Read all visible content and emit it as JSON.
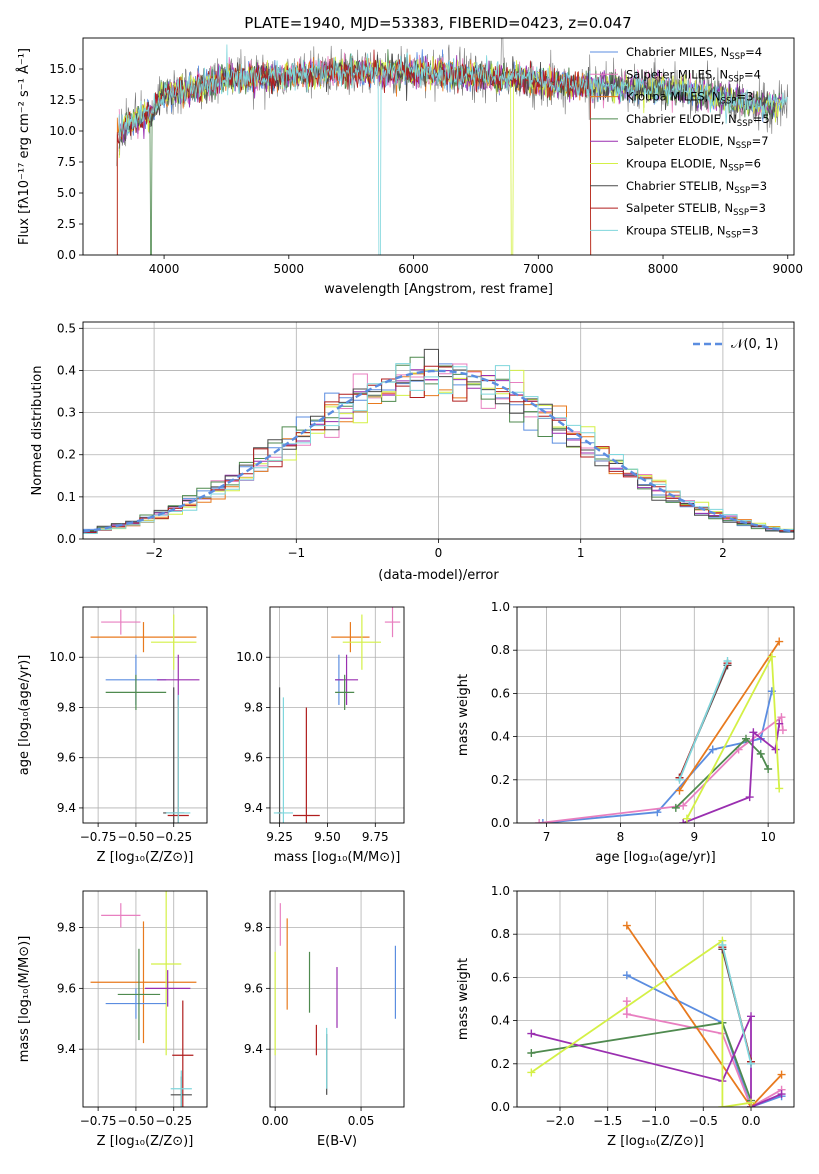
{
  "colors": {
    "chabrier_miles": "#5b8de0",
    "salpeter_miles": "#e87fc0",
    "kroupa_miles": "#e87a1e",
    "chabrier_elodie": "#4f8a4f",
    "salpeter_elodie": "#9a2fb0",
    "kroupa_elodie": "#d4f046",
    "chabrier_stelib": "#4a4a4a",
    "salpeter_stelib": "#b01e1e",
    "kroupa_stelib": "#7fd6dc",
    "normal": "#5b8de0"
  },
  "chart_data": [
    {
      "id": "spectrum",
      "type": "line",
      "title": "PLATE=1940, MJD=53383, FIBERID=0423, z=0.047",
      "xlabel": "wavelength [Angstrom, rest frame]",
      "ylabel": "Flux [fλ10⁻¹⁷ erg cm⁻² s⁻¹ Å⁻¹]",
      "xlim": [
        3350,
        9050
      ],
      "ylim": [
        0,
        17.5
      ],
      "xticks": [
        4000,
        5000,
        6000,
        7000,
        8000,
        9000
      ],
      "yticks": [
        0.0,
        2.5,
        5.0,
        7.5,
        10.0,
        12.5,
        15.0
      ],
      "legend_position": "right",
      "legend": [
        {
          "key": "chabrier_miles",
          "text": "Chabrier MILES, N",
          "sub": "SSP",
          "post": "=4"
        },
        {
          "key": "salpeter_miles",
          "text": "Salpeter MILES, N",
          "sub": "SSP",
          "post": "=4"
        },
        {
          "key": "kroupa_miles",
          "text": "Kroupa MILES, N",
          "sub": "SSP",
          "post": "=3"
        },
        {
          "key": "chabrier_elodie",
          "text": "Chabrier ELODIE, N",
          "sub": "SSP",
          "post": "=5"
        },
        {
          "key": "salpeter_elodie",
          "text": "Salpeter ELODIE, N",
          "sub": "SSP",
          "post": "=7"
        },
        {
          "key": "kroupa_elodie",
          "text": "Kroupa ELODIE, N",
          "sub": "SSP",
          "post": "=6"
        },
        {
          "key": "chabrier_stelib",
          "text": "Chabrier STELIB, N",
          "sub": "SSP",
          "post": "=3"
        },
        {
          "key": "salpeter_stelib",
          "text": "Salpeter STELIB, N",
          "sub": "SSP",
          "post": "=3"
        },
        {
          "key": "kroupa_stelib",
          "text": "Kroupa STELIB, N",
          "sub": "SSP",
          "post": "=3"
        }
      ],
      "continuum": [
        [
          3620,
          9.5
        ],
        [
          3700,
          10.5
        ],
        [
          3800,
          11.0
        ],
        [
          3900,
          11.5
        ],
        [
          4000,
          13.0
        ],
        [
          4300,
          13.5
        ],
        [
          4500,
          14.3
        ],
        [
          5000,
          14.5
        ],
        [
          5500,
          14.8
        ],
        [
          6000,
          14.8
        ],
        [
          6500,
          14.5
        ],
        [
          7000,
          14.0
        ],
        [
          7500,
          13.5
        ],
        [
          8000,
          13.5
        ],
        [
          8500,
          12.6
        ],
        [
          8800,
          12.0
        ],
        [
          9000,
          12.4
        ]
      ]
    },
    {
      "id": "residuals",
      "type": "line",
      "xlabel": "(data-model)/error",
      "ylabel": "Normed distribution",
      "xlim": [
        -2.5,
        2.5
      ],
      "ylim": [
        0,
        0.515
      ],
      "xticks": [
        -2,
        -1,
        0,
        1,
        2
      ],
      "xtick_labels": [
        "−2",
        "−1",
        "0",
        "1",
        "2"
      ],
      "yticks": [
        0.0,
        0.1,
        0.2,
        0.3,
        0.4,
        0.5
      ],
      "legend": [
        {
          "key": "normal",
          "text": "𝒩(0, 1)"
        }
      ],
      "bin_width": 0.1
    },
    {
      "id": "age_vs_Z",
      "type": "scatter",
      "xlabel": "Z [log₁₀(Z/Z⊙)]",
      "ylabel": "age  [log₁₀(age/yr)]",
      "xlim": [
        -0.85,
        -0.03
      ],
      "ylim": [
        9.34,
        10.2
      ],
      "xticks": [
        -0.75,
        -0.5,
        -0.25
      ],
      "xtick_labels": [
        "−0.75",
        "−0.50",
        "−0.25"
      ],
      "yticks": [
        9.4,
        9.6,
        9.8,
        10.0
      ],
      "points": [
        {
          "key": "salpeter_miles",
          "x": -0.6,
          "xerr": 0.13,
          "y": 10.14,
          "yerr": 0.05
        },
        {
          "key": "kroupa_miles",
          "x": -0.45,
          "xerr": 0.35,
          "y": 10.08,
          "yerr": 0.06
        },
        {
          "key": "kroupa_elodie",
          "x": -0.25,
          "xerr": 0.15,
          "y": 10.06,
          "yerr": 0.11
        },
        {
          "key": "chabrier_miles",
          "x": -0.5,
          "xerr": 0.2,
          "y": 9.91,
          "yerr": 0.1
        },
        {
          "key": "salpeter_elodie",
          "x": -0.22,
          "xerr": 0.14,
          "y": 9.91,
          "yerr": 0.1
        },
        {
          "key": "chabrier_elodie",
          "x": -0.5,
          "xerr": 0.2,
          "y": 9.86,
          "yerr": 0.07
        },
        {
          "key": "chabrier_stelib",
          "x": -0.25,
          "xerr": 0.07,
          "y": 9.38,
          "yerr": 0.5
        },
        {
          "key": "salpeter_stelib",
          "x": -0.22,
          "xerr": 0.07,
          "y": 9.37,
          "yerr": 0.46
        },
        {
          "key": "kroupa_stelib",
          "x": -0.22,
          "xerr": 0.08,
          "y": 9.38,
          "yerr": 0.47
        }
      ]
    },
    {
      "id": "age_vs_mass",
      "type": "scatter",
      "xlabel": "mass [log₁₀(M/M⊙)]",
      "ylabel": "",
      "xlim": [
        9.2,
        9.9
      ],
      "ylim": [
        9.34,
        10.2
      ],
      "xticks": [
        9.25,
        9.5,
        9.75
      ],
      "xtick_labels": [
        "9.25",
        "9.50",
        "9.75"
      ],
      "yticks": [
        9.4,
        9.6,
        9.8,
        10.0
      ],
      "points": [
        {
          "key": "salpeter_miles",
          "x": 9.84,
          "xerr": 0.04,
          "y": 10.14,
          "yerr": 0.06
        },
        {
          "key": "kroupa_miles",
          "x": 9.62,
          "xerr": 0.1,
          "y": 10.08,
          "yerr": 0.06
        },
        {
          "key": "kroupa_elodie",
          "x": 9.68,
          "xerr": 0.1,
          "y": 10.06,
          "yerr": 0.11
        },
        {
          "key": "chabrier_miles",
          "x": 9.56,
          "xerr": 0.02,
          "y": 9.91,
          "yerr": 0.1
        },
        {
          "key": "salpeter_elodie",
          "x": 9.6,
          "xerr": 0.06,
          "y": 9.91,
          "yerr": 0.1
        },
        {
          "key": "chabrier_elodie",
          "x": 9.59,
          "xerr": 0.05,
          "y": 9.86,
          "yerr": 0.07
        },
        {
          "key": "chabrier_stelib",
          "x": 9.25,
          "xerr": 0.01,
          "y": 9.38,
          "yerr": 0.5
        },
        {
          "key": "salpeter_stelib",
          "x": 9.39,
          "xerr": 0.07,
          "y": 9.37,
          "yerr": 0.43
        },
        {
          "key": "kroupa_stelib",
          "x": 9.27,
          "xerr": 0.05,
          "y": 9.38,
          "yerr": 0.46
        }
      ]
    },
    {
      "id": "massweight_vs_age",
      "type": "line",
      "xlabel": "age  [log₁₀(age/yr)]",
      "ylabel": "mass weight",
      "xlim": [
        6.6,
        10.35
      ],
      "ylim": [
        0,
        1.0
      ],
      "xticks": [
        7,
        8,
        9,
        10
      ],
      "yticks": [
        0.0,
        0.2,
        0.4,
        0.6,
        0.8,
        1.0
      ],
      "series": [
        {
          "key": "chabrier_miles",
          "x": [
            6.95,
            8.5,
            9.25,
            9.9,
            10.05
          ],
          "y": [
            0.0,
            0.05,
            0.34,
            0.39,
            0.61
          ]
        },
        {
          "key": "salpeter_miles",
          "x": [
            6.9,
            8.85,
            9.6,
            10.18,
            10.2
          ],
          "y": [
            0.0,
            0.08,
            0.34,
            0.49,
            0.43
          ]
        },
        {
          "key": "kroupa_miles",
          "x": [
            8.8,
            10.15
          ],
          "y": [
            0.15,
            0.84
          ]
        },
        {
          "key": "chabrier_elodie",
          "x": [
            8.75,
            9.7,
            9.9,
            10.0
          ],
          "y": [
            0.07,
            0.39,
            0.32,
            0.25
          ]
        },
        {
          "key": "salpeter_elodie",
          "x": [
            8.85,
            9.75,
            9.8,
            10.1,
            10.15
          ],
          "y": [
            0.0,
            0.12,
            0.42,
            0.34,
            0.46
          ]
        },
        {
          "key": "kroupa_elodie",
          "x": [
            8.9,
            10.05,
            10.15
          ],
          "y": [
            0.02,
            0.77,
            0.16
          ]
        },
        {
          "key": "chabrier_stelib",
          "x": [
            8.8,
            9.45
          ],
          "y": [
            0.21,
            0.73
          ]
        },
        {
          "key": "salpeter_stelib",
          "x": [
            8.8,
            9.45
          ],
          "y": [
            0.21,
            0.74
          ]
        },
        {
          "key": "kroupa_stelib",
          "x": [
            8.8,
            9.45
          ],
          "y": [
            0.2,
            0.75
          ]
        }
      ]
    },
    {
      "id": "mass_vs_Z",
      "type": "scatter",
      "xlabel": "Z [log₁₀(Z/Z⊙)]",
      "ylabel": "mass [log₁₀(M/M⊙)]",
      "xlim": [
        -0.85,
        -0.03
      ],
      "ylim": [
        9.21,
        9.92
      ],
      "xticks": [
        -0.75,
        -0.5,
        -0.25
      ],
      "xtick_labels": [
        "−0.75",
        "−0.50",
        "−0.25"
      ],
      "yticks": [
        9.4,
        9.6,
        9.8
      ],
      "points": [
        {
          "key": "salpeter_miles",
          "x": -0.6,
          "xerr": 0.13,
          "y": 9.84,
          "yerr": 0.04
        },
        {
          "key": "kroupa_miles",
          "x": -0.45,
          "xerr": 0.35,
          "y": 9.62,
          "yerr": 0.2
        },
        {
          "key": "kroupa_elodie",
          "x": -0.3,
          "xerr": 0.1,
          "y": 9.68,
          "yerr": 0.3
        },
        {
          "key": "chabrier_miles",
          "x": -0.5,
          "xerr": 0.2,
          "y": 9.55,
          "yerr": 0.05
        },
        {
          "key": "salpeter_elodie",
          "x": -0.29,
          "xerr": 0.15,
          "y": 9.6,
          "yerr": 0.06
        },
        {
          "key": "chabrier_elodie",
          "x": -0.48,
          "xerr": 0.14,
          "y": 9.58,
          "yerr": 0.15
        },
        {
          "key": "salpeter_stelib",
          "x": -0.19,
          "xerr": 0.07,
          "y": 9.38,
          "yerr": 0.18
        },
        {
          "key": "chabrier_stelib",
          "x": -0.2,
          "xerr": 0.07,
          "y": 9.25,
          "yerr": 0.06
        },
        {
          "key": "kroupa_stelib",
          "x": -0.2,
          "xerr": 0.07,
          "y": 9.27,
          "yerr": 0.06
        }
      ]
    },
    {
      "id": "mass_vs_ebv",
      "type": "scatter",
      "xlabel": "E(B-V)",
      "ylabel": "",
      "xlim": [
        -0.003,
        0.075
      ],
      "ylim": [
        9.21,
        9.92
      ],
      "xticks": [
        0.0,
        0.05
      ],
      "xtick_labels": [
        "0.00",
        "0.05"
      ],
      "yticks": [
        9.4,
        9.6,
        9.8
      ],
      "points": [
        {
          "key": "kroupa_elodie",
          "x": 0.0,
          "xerr": 0,
          "y": 9.55,
          "yerr": 0.17
        },
        {
          "key": "salpeter_miles",
          "x": 0.003,
          "xerr": 0,
          "y": 9.81,
          "yerr": 0.07
        },
        {
          "key": "kroupa_miles",
          "x": 0.007,
          "xerr": 0,
          "y": 9.68,
          "yerr": 0.15
        },
        {
          "key": "chabrier_elodie",
          "x": 0.02,
          "xerr": 0,
          "y": 9.62,
          "yerr": 0.1
        },
        {
          "key": "salpeter_stelib",
          "x": 0.024,
          "xerr": 0,
          "y": 9.43,
          "yerr": 0.05
        },
        {
          "key": "chabrier_stelib",
          "x": 0.03,
          "xerr": 0,
          "y": 9.35,
          "yerr": 0.1
        },
        {
          "key": "kroupa_stelib",
          "x": 0.03,
          "xerr": 0,
          "y": 9.37,
          "yerr": 0.1
        },
        {
          "key": "salpeter_elodie",
          "x": 0.036,
          "xerr": 0,
          "y": 9.57,
          "yerr": 0.1
        },
        {
          "key": "chabrier_miles",
          "x": 0.07,
          "xerr": 0,
          "y": 9.62,
          "yerr": 0.12
        }
      ]
    },
    {
      "id": "massweight_vs_Z",
      "type": "line",
      "xlabel": "Z [log₁₀(Z/Z⊙)]",
      "ylabel": "mass weight",
      "xlim": [
        -2.45,
        0.45
      ],
      "ylim": [
        0,
        1.0
      ],
      "xticks": [
        -2.0,
        -1.5,
        -1.0,
        -0.5,
        0.0
      ],
      "xtick_labels": [
        "−2.0",
        "−1.5",
        "−1.0",
        "−0.5",
        "0.0"
      ],
      "yticks": [
        0.0,
        0.2,
        0.4,
        0.6,
        0.8,
        1.0
      ],
      "series": [
        {
          "key": "chabrier_miles",
          "x": [
            -1.3,
            -0.3,
            0.0,
            0.32
          ],
          "y": [
            0.61,
            0.39,
            0.0,
            0.05
          ]
        },
        {
          "key": "salpeter_miles",
          "x": [
            -1.3,
            -1.3,
            -0.3,
            0.0,
            0.32
          ],
          "y": [
            0.49,
            0.43,
            0.34,
            0.0,
            0.08
          ]
        },
        {
          "key": "kroupa_miles",
          "x": [
            -1.3,
            0.0,
            0.32
          ],
          "y": [
            0.84,
            0.0,
            0.15
          ]
        },
        {
          "key": "chabrier_elodie",
          "x": [
            -2.3,
            -0.3,
            0.0
          ],
          "y": [
            0.25,
            0.39,
            0.03
          ]
        },
        {
          "key": "salpeter_elodie",
          "x": [
            -2.3,
            -0.3,
            0.0,
            0.0,
            0.32
          ],
          "y": [
            0.34,
            0.12,
            0.42,
            0.0,
            0.06
          ]
        },
        {
          "key": "kroupa_elodie",
          "x": [
            -2.3,
            -0.3,
            -0.3,
            0.0
          ],
          "y": [
            0.16,
            0.77,
            0.0,
            0.02
          ]
        },
        {
          "key": "chabrier_stelib",
          "x": [
            -0.3,
            0.0
          ],
          "y": [
            0.73,
            0.21
          ]
        },
        {
          "key": "salpeter_stelib",
          "x": [
            -0.3,
            0.0
          ],
          "y": [
            0.74,
            0.21
          ]
        },
        {
          "key": "kroupa_stelib",
          "x": [
            -0.3,
            0.0
          ],
          "y": [
            0.75,
            0.2
          ]
        }
      ]
    }
  ]
}
